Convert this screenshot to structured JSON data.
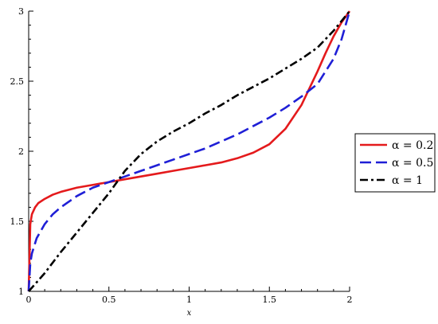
{
  "chart_data": {
    "type": "line",
    "title": "",
    "xlabel": "x",
    "ylabel": "",
    "xlim": [
      0,
      2
    ],
    "ylim": [
      1,
      3
    ],
    "x_major_ticks": [
      0,
      0.5,
      1,
      1.5,
      2
    ],
    "x_tick_labels": [
      "0",
      "0.5",
      "1",
      "1.5",
      "2"
    ],
    "y_major_ticks": [
      1,
      1.5,
      2,
      2.5,
      3
    ],
    "y_tick_labels": [
      "1",
      "1.5",
      "2",
      "2.5",
      "3"
    ],
    "x_minor_step": 0.1,
    "y_minor_step": 0.1,
    "grid": false,
    "legend_position": "right",
    "series": [
      {
        "name": "α = 0.2",
        "color": "#e41a1c",
        "dash": "solid",
        "x": [
          0,
          0.01,
          0.02,
          0.04,
          0.06,
          0.1,
          0.15,
          0.2,
          0.3,
          0.4,
          0.5,
          0.6,
          0.7,
          0.8,
          0.9,
          1.0,
          1.1,
          1.2,
          1.3,
          1.4,
          1.5,
          1.6,
          1.7,
          1.8,
          1.85,
          1.9,
          1.95,
          2.0
        ],
        "y": [
          1.0,
          1.48,
          1.55,
          1.6,
          1.63,
          1.66,
          1.69,
          1.71,
          1.74,
          1.76,
          1.78,
          1.8,
          1.82,
          1.84,
          1.86,
          1.88,
          1.9,
          1.92,
          1.95,
          1.99,
          2.05,
          2.16,
          2.33,
          2.57,
          2.7,
          2.82,
          2.92,
          3.0
        ]
      },
      {
        "name": "α = 0.5",
        "color": "#1f1fd6",
        "dash": "dashed",
        "x": [
          0,
          0.01,
          0.02,
          0.05,
          0.1,
          0.15,
          0.2,
          0.3,
          0.4,
          0.5,
          0.6,
          0.7,
          0.8,
          0.9,
          1.0,
          1.1,
          1.2,
          1.3,
          1.4,
          1.5,
          1.6,
          1.7,
          1.8,
          1.9,
          1.95,
          2.0
        ],
        "y": [
          1.0,
          1.2,
          1.27,
          1.38,
          1.48,
          1.55,
          1.6,
          1.68,
          1.74,
          1.78,
          1.82,
          1.86,
          1.9,
          1.94,
          1.98,
          2.02,
          2.07,
          2.12,
          2.18,
          2.24,
          2.31,
          2.39,
          2.48,
          2.66,
          2.8,
          3.0
        ]
      },
      {
        "name": "α = 1",
        "color": "#000000",
        "dash": "dashdot",
        "x": [
          0,
          0.1,
          0.2,
          0.3,
          0.4,
          0.5,
          0.55,
          0.6,
          0.7,
          0.8,
          0.9,
          1.0,
          1.1,
          1.2,
          1.3,
          1.4,
          1.5,
          1.6,
          1.7,
          1.8,
          1.9,
          2.0
        ],
        "y": [
          1.0,
          1.13,
          1.28,
          1.42,
          1.56,
          1.7,
          1.78,
          1.86,
          1.98,
          2.07,
          2.14,
          2.2,
          2.27,
          2.33,
          2.4,
          2.46,
          2.52,
          2.59,
          2.66,
          2.74,
          2.86,
          3.0
        ]
      }
    ]
  }
}
